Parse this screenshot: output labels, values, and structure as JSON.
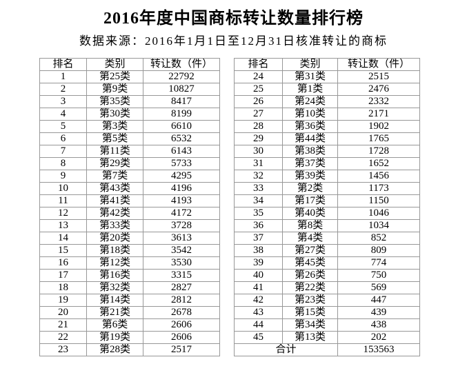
{
  "chart_data": {
    "type": "table",
    "title": "2016年度中国商标转让数量排行榜",
    "subtitle": "数据来源：2016年1月1日至12月31日核准转让的商标",
    "columns": [
      "排名",
      "类别",
      "转让数（件）"
    ],
    "tables": [
      {
        "rows": [
          [
            "1",
            "第25类",
            "22792"
          ],
          [
            "2",
            "第9类",
            "10827"
          ],
          [
            "3",
            "第35类",
            "8417"
          ],
          [
            "4",
            "第30类",
            "8199"
          ],
          [
            "5",
            "第3类",
            "6610"
          ],
          [
            "6",
            "第5类",
            "6532"
          ],
          [
            "7",
            "第11类",
            "6143"
          ],
          [
            "8",
            "第29类",
            "5733"
          ],
          [
            "9",
            "第7类",
            "4295"
          ],
          [
            "10",
            "第43类",
            "4196"
          ],
          [
            "11",
            "第41类",
            "4193"
          ],
          [
            "12",
            "第42类",
            "4172"
          ],
          [
            "13",
            "第33类",
            "3728"
          ],
          [
            "14",
            "第20类",
            "3613"
          ],
          [
            "15",
            "第18类",
            "3542"
          ],
          [
            "16",
            "第12类",
            "3530"
          ],
          [
            "17",
            "第16类",
            "3315"
          ],
          [
            "18",
            "第32类",
            "2827"
          ],
          [
            "19",
            "第14类",
            "2812"
          ],
          [
            "20",
            "第21类",
            "2678"
          ],
          [
            "21",
            "第6类",
            "2606"
          ],
          [
            "22",
            "第19类",
            "2606"
          ],
          [
            "23",
            "第28类",
            "2517"
          ]
        ]
      },
      {
        "rows": [
          [
            "24",
            "第31类",
            "2515"
          ],
          [
            "25",
            "第1类",
            "2476"
          ],
          [
            "26",
            "第24类",
            "2332"
          ],
          [
            "27",
            "第10类",
            "2171"
          ],
          [
            "28",
            "第36类",
            "1902"
          ],
          [
            "29",
            "第44类",
            "1765"
          ],
          [
            "30",
            "第38类",
            "1728"
          ],
          [
            "31",
            "第37类",
            "1652"
          ],
          [
            "32",
            "第39类",
            "1456"
          ],
          [
            "33",
            "第2类",
            "1173"
          ],
          [
            "34",
            "第17类",
            "1150"
          ],
          [
            "35",
            "第40类",
            "1046"
          ],
          [
            "36",
            "第8类",
            "1034"
          ],
          [
            "37",
            "第4类",
            "852"
          ],
          [
            "38",
            "第27类",
            "809"
          ],
          [
            "39",
            "第45类",
            "774"
          ],
          [
            "40",
            "第26类",
            "750"
          ],
          [
            "41",
            "第22类",
            "569"
          ],
          [
            "42",
            "第23类",
            "447"
          ],
          [
            "43",
            "第15类",
            "439"
          ],
          [
            "44",
            "第34类",
            "438"
          ],
          [
            "45",
            "第13类",
            "202"
          ]
        ],
        "footer": {
          "label": "合计",
          "value": "153563"
        }
      }
    ],
    "colors": {
      "background": "#ffffff",
      "text": "#000000",
      "table_border": "#979797"
    }
  }
}
